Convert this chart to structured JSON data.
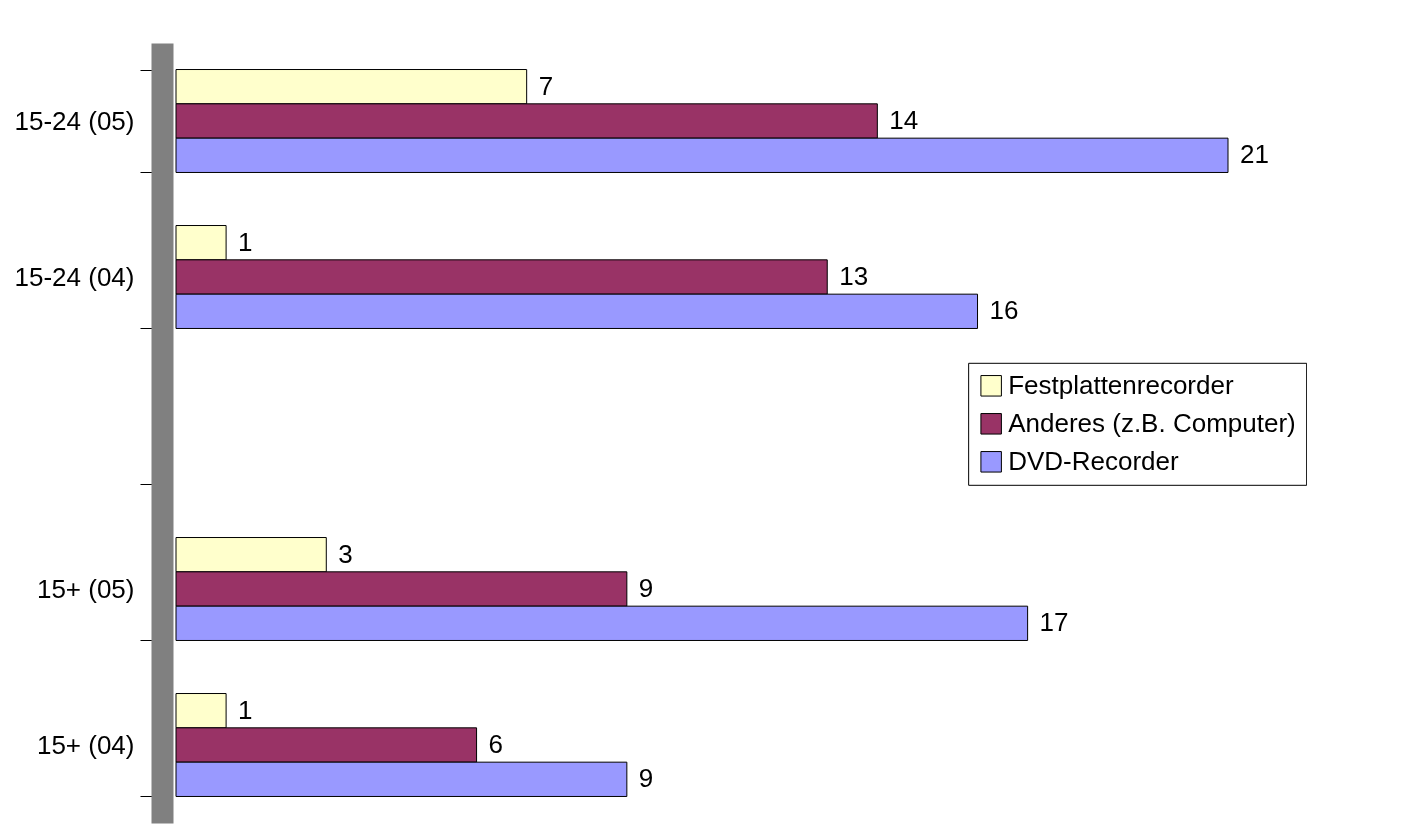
{
  "chart_data": {
    "type": "bar",
    "orientation": "horizontal",
    "categories": [
      "15-24 (05)",
      "15-24 (04)",
      null,
      "15+ (05)",
      "15+ (04)"
    ],
    "series": [
      {
        "name": "Festplattenrecorder",
        "color": "#ffffcc",
        "values": [
          7,
          1,
          null,
          3,
          1
        ]
      },
      {
        "name": "Anderes (z.B. Computer)",
        "color": "#993366",
        "values": [
          14,
          13,
          null,
          9,
          6
        ]
      },
      {
        "name": "DVD-Recorder",
        "color": "#9999ff",
        "values": [
          21,
          16,
          null,
          17,
          9
        ]
      }
    ],
    "data_labels": true,
    "legend": "right",
    "tick_labels": "y"
  }
}
